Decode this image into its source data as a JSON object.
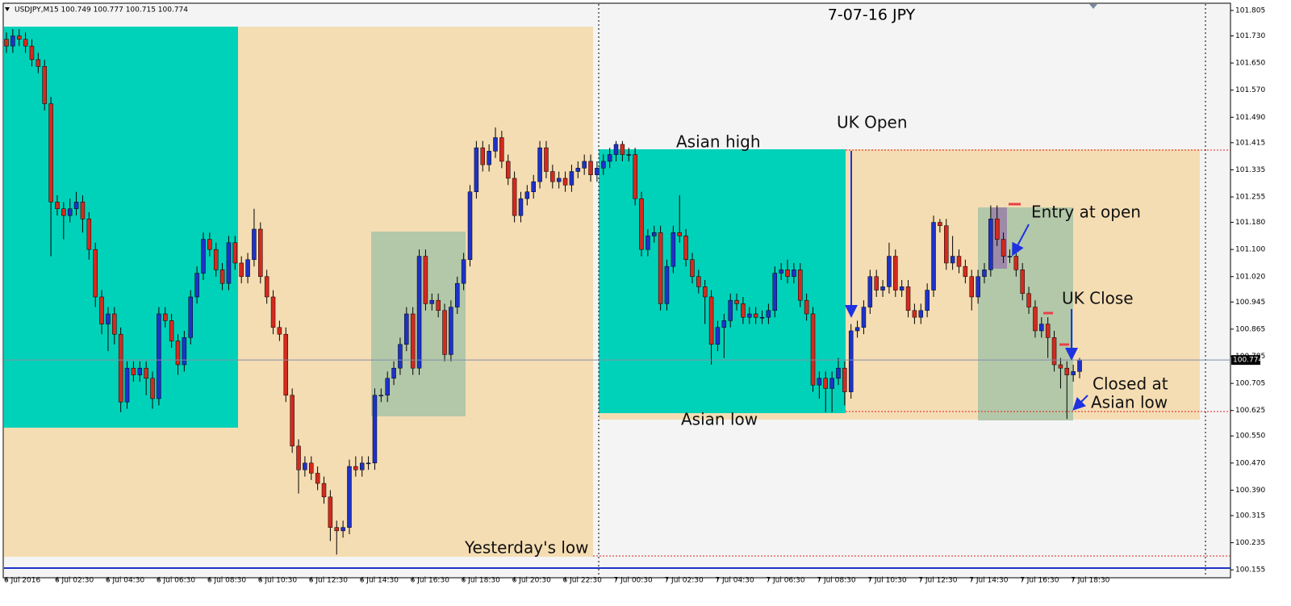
{
  "chart_data": {
    "type": "candlestick",
    "header": "USDJPY,M15  100.749 100.777 100.715 100.774",
    "title": "7-07-16  JPY",
    "up_color": "#1e32c8",
    "down_color": "#d42a1e",
    "last_price": 100.774,
    "ylim": [
      100.134,
      101.824
    ],
    "yticks": [
      101.805,
      {
        "value": 101.73,
        "label": "101.730"
      },
      {
        "value": 101.65,
        "label": "101.650"
      },
      {
        "value": 101.57,
        "label": "101.570"
      },
      {
        "value": 101.49,
        "label": "101.490"
      },
      101.415,
      101.335,
      101.255,
      {
        "value": 101.18,
        "label": "101.180"
      },
      {
        "value": 101.1,
        "label": "101.100"
      },
      {
        "value": 101.02,
        "label": "101.020"
      },
      100.945,
      100.865,
      100.785,
      100.705,
      100.625,
      {
        "value": 100.55,
        "label": "100.550"
      },
      {
        "value": 100.47,
        "label": "100.470"
      },
      {
        "value": 100.39,
        "label": "100.390"
      },
      100.315,
      100.235,
      100.155
    ],
    "categories": [
      "6 Jul 2016",
      null,
      null,
      null,
      null,
      null,
      null,
      null,
      "6 Jul 02:30",
      null,
      null,
      null,
      null,
      null,
      null,
      null,
      "6 Jul 04:30",
      null,
      null,
      null,
      null,
      null,
      null,
      null,
      "6 Jul 06:30",
      null,
      null,
      null,
      null,
      null,
      null,
      null,
      "6 Jul 08:30",
      null,
      null,
      null,
      null,
      null,
      null,
      null,
      "6 Jul 10:30",
      null,
      null,
      null,
      null,
      null,
      null,
      null,
      "6 Jul 12:30",
      null,
      null,
      null,
      null,
      null,
      null,
      null,
      "6 Jul 14:30",
      null,
      null,
      null,
      null,
      null,
      null,
      null,
      "6 Jul 16:30",
      null,
      null,
      null,
      null,
      null,
      null,
      null,
      "6 Jul 18:30",
      null,
      null,
      null,
      null,
      null,
      null,
      null,
      "6 Jul 20:30",
      null,
      null,
      null,
      null,
      null,
      null,
      null,
      "6 Jul 22:30",
      null,
      null,
      null,
      null,
      null,
      null,
      null,
      "7 Jul 00:30",
      null,
      null,
      null,
      null,
      null,
      null,
      null,
      "7 Jul 02:30",
      null,
      null,
      null,
      null,
      null,
      null,
      null,
      "7 Jul 04:30",
      null,
      null,
      null,
      null,
      null,
      null,
      null,
      "7 Jul 06:30",
      null,
      null,
      null,
      null,
      null,
      null,
      null,
      "7 Jul 08:30",
      null,
      null,
      null,
      null,
      null,
      null,
      null,
      "7 Jul 10:30",
      null,
      null,
      null,
      null,
      null,
      null,
      null,
      "7 Jul 12:30",
      null,
      null,
      null,
      null,
      null,
      null,
      null,
      "7 Jul 14:30",
      null,
      null,
      null,
      null,
      null,
      null,
      null,
      "7 Jul 16:30",
      null,
      null,
      null,
      null,
      null,
      null,
      null,
      "7 Jul 18:30",
      null
    ],
    "open": [
      101.72,
      101.7,
      101.73,
      101.72,
      101.7,
      101.66,
      101.64,
      101.53,
      101.24,
      101.22,
      101.2,
      101.22,
      101.24,
      101.19,
      101.1,
      100.96,
      100.88,
      100.91,
      100.85,
      100.65,
      100.75,
      100.73,
      100.75,
      100.72,
      100.66,
      100.91,
      100.89,
      100.83,
      100.76,
      100.84,
      100.96,
      101.03,
      101.13,
      101.1,
      101.04,
      101.0,
      101.12,
      101.06,
      101.02,
      101.07,
      101.16,
      101.02,
      100.96,
      100.87,
      100.85,
      100.67,
      100.52,
      100.45,
      100.47,
      100.44,
      100.41,
      100.37,
      100.28,
      100.27,
      100.28,
      100.46,
      100.45,
      100.47,
      100.47,
      100.67,
      100.67,
      100.72,
      100.75,
      100.82,
      100.91,
      100.75,
      101.08,
      100.94,
      100.95,
      100.92,
      100.79,
      100.93,
      101.0,
      101.07,
      101.27,
      101.4,
      101.35,
      101.39,
      101.43,
      101.36,
      101.31,
      101.2,
      101.25,
      101.27,
      101.3,
      101.4,
      101.33,
      101.3,
      101.31,
      101.29,
      101.33,
      101.34,
      101.36,
      101.32,
      101.34,
      101.36,
      101.38,
      101.41,
      101.38,
      101.38,
      101.25,
      101.1,
      101.14,
      101.15,
      100.94,
      101.05,
      101.15,
      101.14,
      101.07,
      101.02,
      100.99,
      100.96,
      100.82,
      100.87,
      100.89,
      100.95,
      100.94,
      100.9,
      100.91,
      100.9,
      100.9,
      100.92,
      101.03,
      101.04,
      101.02,
      101.04,
      100.95,
      100.91,
      100.7,
      100.72,
      100.69,
      100.72,
      100.75,
      100.68,
      100.86,
      100.87,
      100.93,
      101.02,
      100.98,
      100.99,
      101.08,
      100.98,
      100.99,
      100.92,
      100.9,
      100.92,
      100.98,
      101.18,
      101.17,
      101.06,
      101.08,
      101.05,
      101.02,
      100.96,
      101.02,
      101.04,
      101.19,
      101.13,
      101.08,
      101.08,
      101.04,
      100.97,
      100.93,
      100.86,
      100.88,
      100.84,
      100.76,
      100.75,
      100.73,
      100.74
    ],
    "high": [
      101.74,
      101.75,
      101.75,
      101.74,
      101.72,
      101.68,
      101.66,
      101.55,
      101.26,
      101.24,
      101.25,
      101.27,
      101.26,
      101.21,
      101.12,
      100.98,
      100.93,
      100.93,
      100.87,
      100.77,
      100.77,
      100.77,
      100.77,
      100.74,
      100.93,
      100.93,
      100.91,
      100.85,
      100.86,
      100.98,
      101.05,
      101.15,
      101.15,
      101.12,
      101.06,
      101.14,
      101.14,
      101.08,
      101.09,
      101.22,
      101.18,
      101.04,
      100.98,
      100.89,
      100.87,
      100.69,
      100.54,
      100.49,
      100.49,
      100.46,
      100.43,
      100.39,
      100.3,
      100.3,
      100.48,
      100.49,
      100.49,
      100.49,
      100.69,
      100.69,
      100.74,
      100.77,
      100.84,
      100.93,
      100.93,
      101.1,
      101.1,
      100.97,
      100.97,
      100.94,
      100.95,
      101.02,
      101.09,
      101.29,
      101.42,
      101.42,
      101.41,
      101.46,
      101.45,
      101.38,
      101.33,
      101.27,
      101.29,
      101.32,
      101.42,
      101.42,
      101.35,
      101.33,
      101.33,
      101.35,
      101.36,
      101.38,
      101.38,
      101.36,
      101.38,
      101.4,
      101.42,
      101.42,
      101.4,
      101.4,
      101.27,
      101.16,
      101.17,
      101.17,
      101.07,
      101.17,
      101.26,
      101.16,
      101.09,
      101.04,
      101.01,
      100.98,
      100.89,
      100.91,
      100.97,
      100.97,
      100.96,
      100.93,
      100.93,
      100.92,
      100.94,
      101.05,
      101.06,
      101.07,
      101.06,
      101.06,
      100.97,
      100.93,
      100.74,
      100.74,
      100.74,
      100.78,
      100.77,
      100.88,
      100.89,
      100.95,
      101.04,
      101.04,
      101.01,
      101.12,
      101.1,
      101.01,
      101.01,
      100.94,
      100.94,
      101.0,
      101.2,
      101.19,
      101.19,
      101.14,
      101.1,
      101.07,
      101.04,
      101.04,
      101.06,
      101.23,
      101.23,
      101.15,
      101.1,
      101.1,
      101.06,
      100.99,
      100.95,
      100.9,
      100.9,
      100.86,
      100.78,
      100.77,
      100.76,
      100.78
    ],
    "low": [
      101.68,
      101.68,
      101.7,
      101.68,
      101.64,
      101.62,
      101.51,
      101.08,
      101.2,
      101.13,
      101.18,
      101.2,
      101.15,
      101.07,
      100.93,
      100.85,
      100.8,
      100.82,
      100.62,
      100.63,
      100.71,
      100.71,
      100.67,
      100.63,
      100.64,
      100.87,
      100.81,
      100.73,
      100.74,
      100.82,
      100.94,
      101.01,
      101.08,
      101.02,
      100.98,
      100.98,
      101.04,
      101.0,
      101.0,
      101.05,
      101.0,
      100.94,
      100.85,
      100.83,
      100.65,
      100.5,
      100.38,
      100.43,
      100.42,
      100.39,
      100.35,
      100.24,
      100.2,
      100.25,
      100.26,
      100.43,
      100.43,
      100.45,
      100.45,
      100.65,
      100.65,
      100.7,
      100.73,
      100.8,
      100.73,
      100.73,
      100.92,
      100.92,
      100.9,
      100.77,
      100.77,
      100.91,
      100.98,
      101.05,
      101.25,
      101.33,
      101.33,
      101.37,
      101.34,
      101.29,
      101.18,
      101.18,
      101.23,
      101.25,
      101.28,
      101.31,
      101.28,
      101.28,
      101.27,
      101.27,
      101.31,
      101.32,
      101.3,
      101.3,
      101.32,
      101.34,
      101.36,
      101.36,
      101.36,
      101.23,
      101.08,
      101.08,
      101.12,
      100.92,
      100.92,
      101.03,
      101.12,
      101.05,
      101.0,
      100.97,
      100.88,
      100.76,
      100.8,
      100.78,
      100.87,
      100.92,
      100.88,
      100.88,
      100.88,
      100.88,
      100.88,
      100.9,
      101.01,
      101.0,
      101.0,
      100.93,
      100.89,
      100.68,
      100.66,
      100.62,
      100.62,
      100.7,
      100.64,
      100.66,
      100.84,
      100.85,
      100.91,
      100.96,
      100.96,
      100.97,
      100.96,
      100.96,
      100.9,
      100.88,
      100.88,
      100.9,
      100.96,
      101.15,
      101.04,
      101.04,
      101.03,
      101.0,
      100.92,
      100.94,
      101.0,
      101.02,
      101.11,
      101.06,
      101.06,
      101.02,
      100.95,
      100.91,
      100.84,
      100.84,
      100.78,
      100.74,
      100.69,
      100.6,
      100.71,
      100.72
    ],
    "close": [
      101.7,
      101.73,
      101.72,
      101.7,
      101.66,
      101.64,
      101.53,
      101.24,
      101.22,
      101.2,
      101.22,
      101.24,
      101.19,
      101.1,
      100.96,
      100.88,
      100.91,
      100.85,
      100.65,
      100.75,
      100.73,
      100.75,
      100.72,
      100.66,
      100.91,
      100.89,
      100.83,
      100.76,
      100.84,
      100.96,
      101.03,
      101.13,
      101.1,
      101.04,
      101.0,
      101.12,
      101.06,
      101.02,
      101.07,
      101.16,
      101.02,
      100.96,
      100.87,
      100.85,
      100.67,
      100.52,
      100.45,
      100.47,
      100.44,
      100.41,
      100.37,
      100.28,
      100.27,
      100.28,
      100.46,
      100.45,
      100.47,
      100.47,
      100.67,
      100.67,
      100.72,
      100.75,
      100.82,
      100.91,
      100.75,
      101.08,
      100.94,
      100.95,
      100.92,
      100.79,
      100.93,
      101.0,
      101.07,
      101.27,
      101.4,
      101.35,
      101.39,
      101.43,
      101.36,
      101.31,
      101.2,
      101.25,
      101.27,
      101.3,
      101.4,
      101.33,
      101.3,
      101.31,
      101.29,
      101.33,
      101.34,
      101.36,
      101.32,
      101.34,
      101.36,
      101.38,
      101.41,
      101.38,
      101.38,
      101.25,
      101.1,
      101.14,
      101.15,
      100.94,
      101.05,
      101.15,
      101.14,
      101.07,
      101.02,
      100.99,
      100.96,
      100.82,
      100.87,
      100.89,
      100.95,
      100.94,
      100.9,
      100.91,
      100.9,
      100.9,
      100.92,
      101.03,
      101.04,
      101.02,
      101.04,
      100.95,
      100.91,
      100.7,
      100.72,
      100.69,
      100.72,
      100.75,
      100.68,
      100.86,
      100.87,
      100.93,
      101.02,
      100.98,
      100.99,
      101.08,
      100.98,
      100.99,
      100.92,
      100.9,
      100.92,
      100.98,
      101.18,
      101.17,
      101.06,
      101.08,
      101.05,
      101.02,
      100.96,
      101.02,
      101.04,
      101.19,
      101.13,
      101.08,
      101.08,
      101.04,
      100.97,
      100.93,
      100.86,
      100.88,
      100.84,
      100.76,
      100.75,
      100.73,
      100.74,
      100.774
    ],
    "annotations": [
      "Asian high",
      "UK Open",
      "Entry at open",
      "UK Close",
      "Closed at",
      "Asian low",
      "Asian low",
      "Yesterday's low"
    ]
  }
}
